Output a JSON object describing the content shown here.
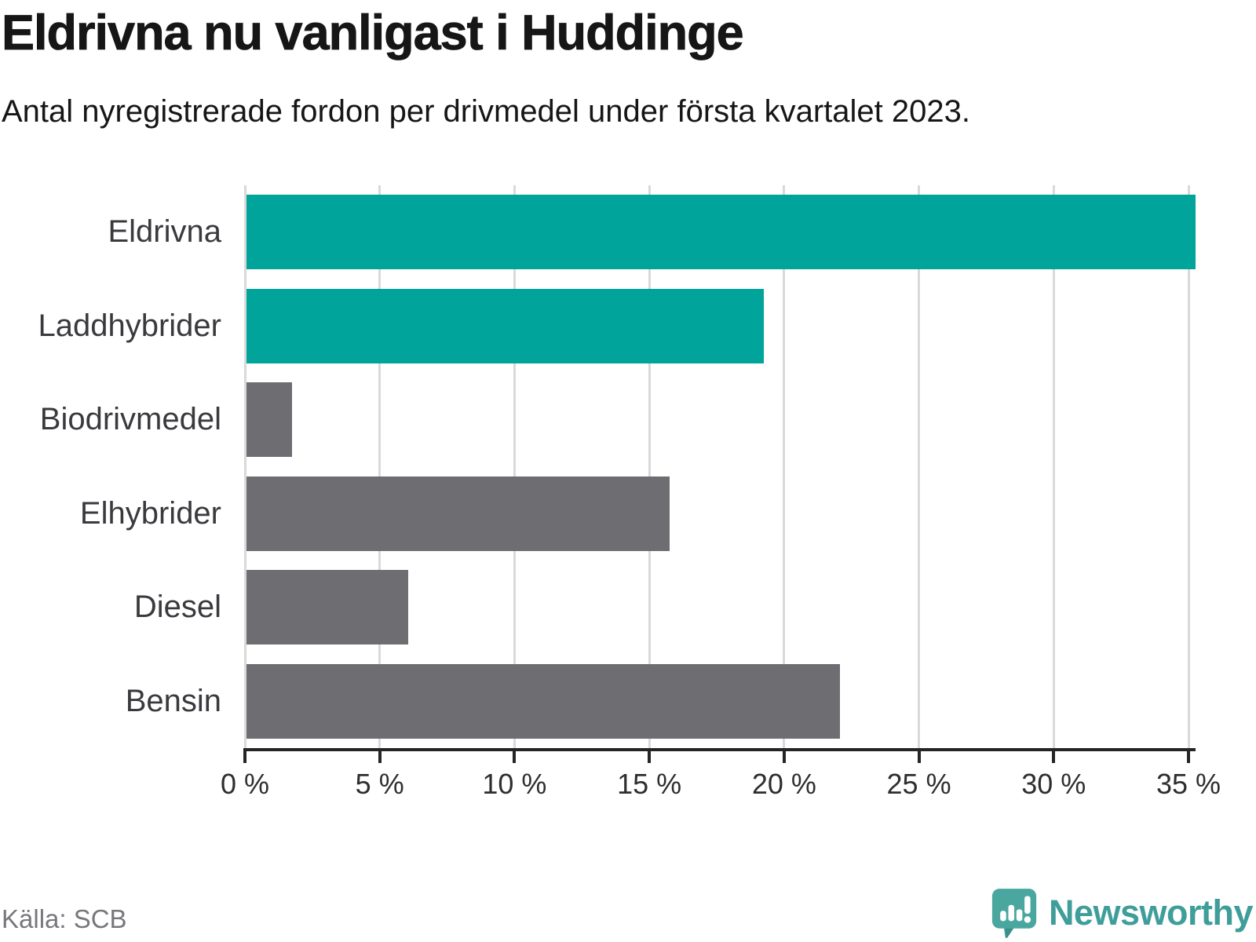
{
  "header": {
    "title": "Eldrivna nu vanligast i Huddinge",
    "subtitle": "Antal nyregistrerade fordon per drivmedel under första kvartalet 2023."
  },
  "footer": {
    "source": "Källa: SCB",
    "brand_name": "Newsworthy",
    "brand_icon": "newsworthy-speech-bubble-bar-chart-icon"
  },
  "colors": {
    "highlight": "#00a49a",
    "muted": "#6d6d72",
    "axis": "#252525",
    "gridline": "#d9d9d9",
    "title_text": "#161616",
    "category_text": "#3a3a3e",
    "tick_text": "#2e2e31",
    "source_text": "#77777c",
    "brand_teal": "#3f9e99"
  },
  "chart_data": {
    "type": "bar",
    "orientation": "horizontal",
    "title": "Eldrivna nu vanligast i Huddinge",
    "subtitle": "Antal nyregistrerade fordon per drivmedel under första kvartalet 2023.",
    "source": "Källa: SCB",
    "categories": [
      "Eldrivna",
      "Laddhybrider",
      "Biodrivmedel",
      "Elhybrider",
      "Diesel",
      "Bensin"
    ],
    "values": [
      35.2,
      19.2,
      1.7,
      15.7,
      6.0,
      22.0
    ],
    "unit": "%",
    "bar_colors": [
      "highlight",
      "highlight",
      "muted",
      "muted",
      "muted",
      "muted"
    ],
    "xlim": [
      0,
      35
    ],
    "x_ticks": [
      {
        "value": 0,
        "label": "0 %"
      },
      {
        "value": 5,
        "label": "5 %"
      },
      {
        "value": 10,
        "label": "10 %"
      },
      {
        "value": 15,
        "label": "15 %"
      },
      {
        "value": 20,
        "label": "20 %"
      },
      {
        "value": 25,
        "label": "25 %"
      },
      {
        "value": 30,
        "label": "30 %"
      },
      {
        "value": 35,
        "label": "35 %"
      }
    ],
    "grid": true,
    "legend": false,
    "value_labels": false
  }
}
